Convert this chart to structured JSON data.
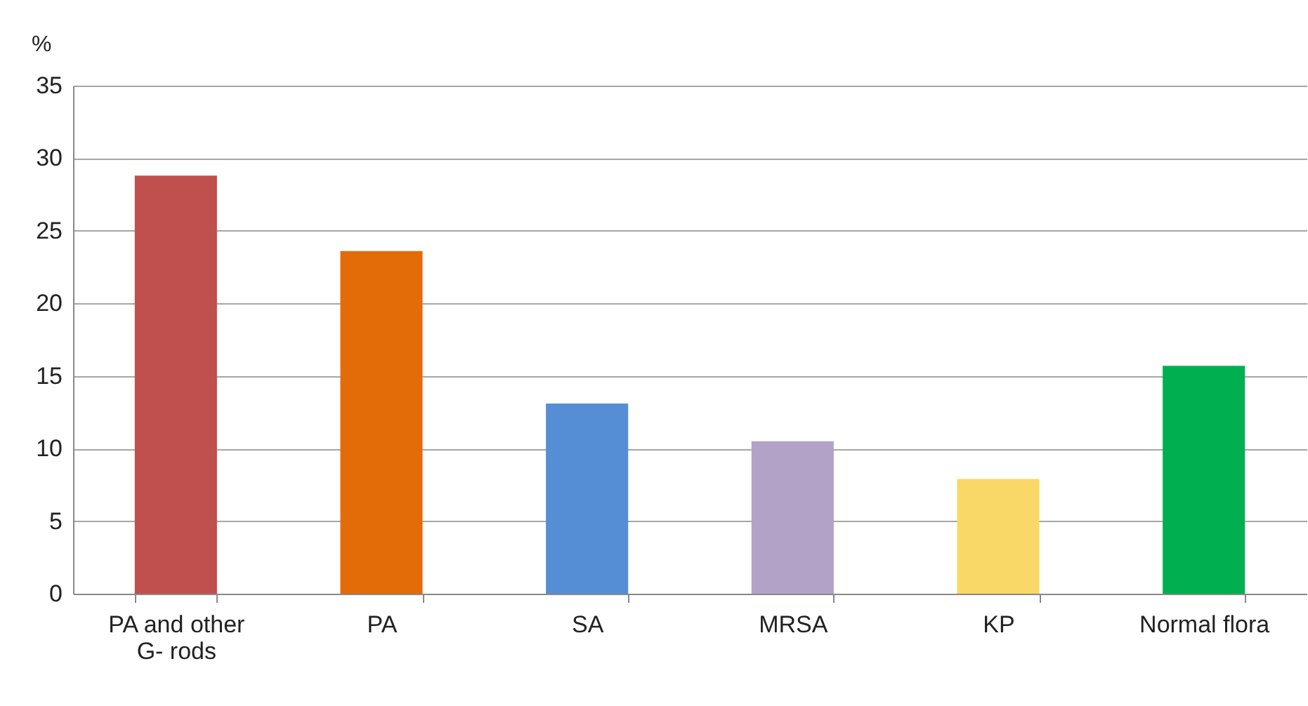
{
  "chart_data": {
    "type": "bar",
    "ylabel": "%",
    "categories": [
      "PA and other G- rods",
      "PA",
      "SA",
      "MRSA",
      "KP",
      "Normal flora"
    ],
    "values": [
      28.8,
      23.6,
      13.1,
      10.5,
      7.9,
      15.7
    ],
    "colors": [
      "#c0504d",
      "#e36c09",
      "#558ed5",
      "#b3a2c7",
      "#fad867",
      "#00b050"
    ],
    "ylim": [
      0,
      35
    ],
    "yticks": [
      0,
      5,
      10,
      15,
      20,
      25,
      30,
      35
    ],
    "grid": "y",
    "legend": false
  }
}
